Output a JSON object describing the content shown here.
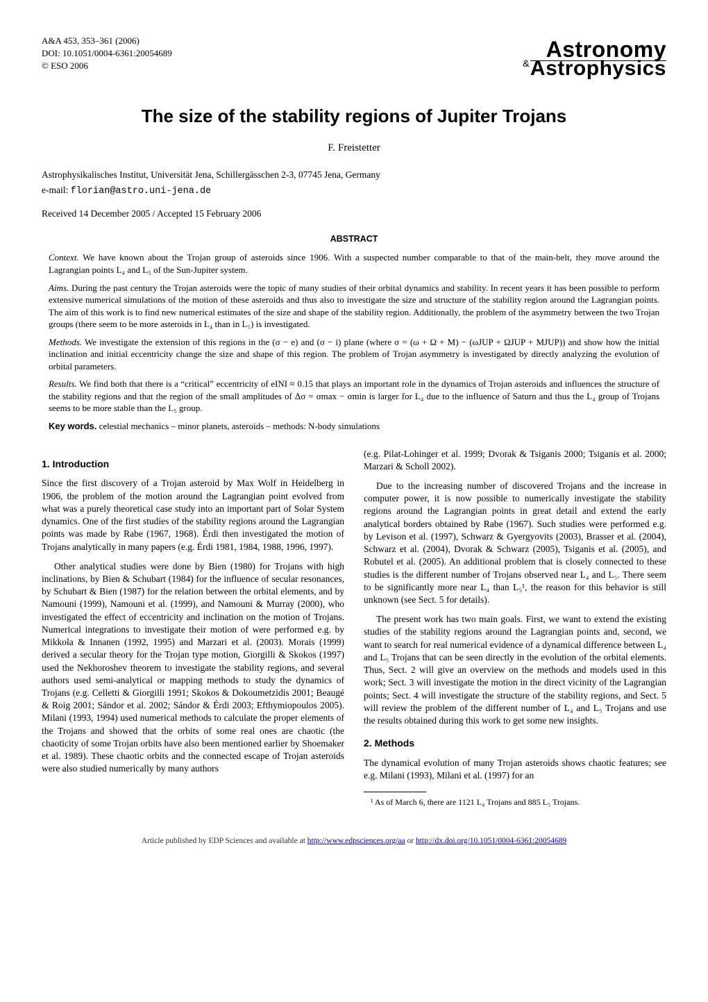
{
  "header": {
    "citation": "A&A 453, 353–361 (2006)",
    "doi": "DOI: 10.1051/0004-6361:20054689",
    "copyright": "© ESO 2006",
    "journal_top": "Astronomy",
    "journal_amp": "&",
    "journal_bottom": "Astrophysics"
  },
  "title": "The size of the stability regions of Jupiter Trojans",
  "author": "F. Freistetter",
  "affiliation": "Astrophysikalisches Institut, Universität Jena, Schillergässchen 2-3, 07745 Jena, Germany",
  "email_label": "e-mail: ",
  "email": "florian@astro.uni-jena.de",
  "dates": "Received 14 December 2005 / Accepted 15 February 2006",
  "abstract_head": "ABSTRACT",
  "abstract": {
    "context_lead": "Context.",
    "context": " We have known about the Trojan group of asteroids since 1906. With a suspected number comparable to that of the main-belt, they move around the Lagrangian points L₄ and L₅ of the Sun-Jupiter system.",
    "aims_lead": "Aims.",
    "aims": " During the past century the Trojan asteroids were the topic of many studies of their orbital dynamics and stability. In recent years it has been possible to perform extensive numerical simulations of the motion of these asteroids and thus also to investigate the size and structure of the stability region around the Lagrangian points. The aim of this work is to find new numerical estimates of the size and shape of the stability region. Additionally, the problem of the asymmetry between the two Trojan groups (there seem to be more asteroids in L₄ than in L₅) is investigated.",
    "methods_lead": "Methods.",
    "methods": " We investigate the extension of this regions in the (σ − e) and (σ − i) plane (where σ = (ω + Ω + M) − (ωJUP + ΩJUP + MJUP)) and show how the initial inclination and initial eccentricity change the size and shape of this region. The problem of Trojan asymmetry is investigated by directly analyzing the evolution of orbital parameters.",
    "results_lead": "Results.",
    "results": " We find both that there is a “critical” eccentricity of eINI ≈ 0.15 that plays an important role in the dynamics of Trojan asteroids and influences the structure of the stability regions and that the region of the small amplitudes of Δσ = σmax − σmin is larger for L₄ due to the influence of Saturn and thus the L₄ group of Trojans seems to be more stable than the L₅ group."
  },
  "keywords_lead": "Key words.",
  "keywords": " celestial mechanics – minor planets, asteroids – methods: N-body simulations",
  "sec1_head": "1. Introduction",
  "sec1_p1": "Since the first discovery of a Trojan asteroid by Max Wolf in Heidelberg in 1906, the problem of the motion around the Lagrangian point evolved from what was a purely theoretical case study into an important part of Solar System dynamics. One of the first studies of the stability regions around the Lagrangian points was made by Rabe (1967, 1968). Érdi then investigated the motion of Trojans analytically in many papers (e.g. Érdi 1981, 1984, 1988, 1996, 1997).",
  "sec1_p2": "Other analytical studies were done by Bien (1980) for Trojans with high inclinations, by Bien & Schubart (1984) for the influence of secular resonances, by Schubart & Bien (1987) for the relation between the orbital elements, and by Namouni (1999), Namouni et al. (1999), and Namouni & Murray (2000), who investigated the effect of eccentricity and inclination on the motion of Trojans. Numerical integrations to investigate their motion of were performed e.g. by Mikkola & Innanen (1992, 1995) and Marzari et al. (2003). Morais (1999) derived a secular theory for the Trojan type motion, Giorgilli & Skokos (1997) used the Nekhoroshev theorem to investigate the stability regions, and several authors used semi-analytical or mapping methods to study the dynamics of Trojans (e.g. Celletti & Giorgilli 1991; Skokos & Dokoumetzidis 2001; Beaugé & Roig 2001; Sándor et al. 2002; Sándor & Érdi 2003; Efthymiopoulos 2005). Milani (1993, 1994) used numerical methods to calculate the proper elements of the Trojans and showed that the orbits of some real ones are chaotic (the chaoticity of some Trojan orbits have also been mentioned earlier by Shoemaker et al. 1989). These chaotic orbits and the connected escape of Trojan asteroids were also studied numerically by many authors",
  "sec1_p3": "(e.g. Pilat-Lohinger et al. 1999; Dvorak & Tsiganis 2000; Tsiganis et al. 2000; Marzari & Scholl 2002).",
  "sec1_p4": "Due to the increasing number of discovered Trojans and the increase in computer power, it is now possible to numerically investigate the stability regions around the Lagrangian points in great detail and extend the early analytical borders obtained by Rabe (1967). Such studies were performed e.g. by Levison et al. (1997), Schwarz & Gyergyovits (2003), Brasser et al. (2004), Schwarz et al. (2004), Dvorak & Schwarz (2005), Tsiganis et al. (2005), and Robutel et al. (2005). An additional problem that is closely connected to these studies is the different number of Trojans observed near L₄ and L₅. There seem to be significantly more near L₄ than L₅¹, the reason for this behavior is still unknown (see Sect. 5 for details).",
  "sec1_p5": "The present work has two main goals. First, we want to extend the existing studies of the stability regions around the Lagrangian points and, second, we want to search for real numerical evidence of a dynamical difference between L₄ and L₅ Trojans that can be seen directly in the evolution of the orbital elements. Thus, Sect. 2 will give an overview on the methods and models used in this work; Sect. 3 will investigate the motion in the direct vicinity of the Lagrangian points; Sect. 4 will investigate the structure of the stability regions, and Sect. 5 will review the problem of the different number of L₄ and L₅ Trojans and use the results obtained during this work to get some new insights.",
  "sec2_head": "2. Methods",
  "sec2_p1": "The dynamical evolution of many Trojan asteroids shows chaotic features; see e.g. Milani (1993), Milani et al. (1997) for an",
  "footnote1": "¹ As of March 6, there are 1121 L₄ Trojans and 885 L₅ Trojans.",
  "bottom": {
    "text1": "Article published by EDP Sciences and available at ",
    "link1": "http://www.edpsciences.org/aa",
    "text2": " or ",
    "link2": "http://dx.doi.org/10.1051/0004-6361:20054689"
  }
}
